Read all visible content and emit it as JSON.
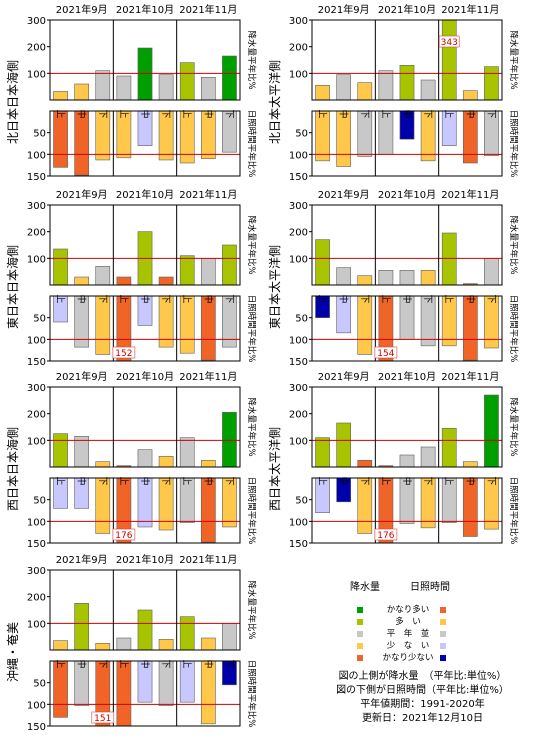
{
  "colors": {
    "very_much": "#009f00",
    "much": "#a8c400",
    "normal": "#c8c8c8",
    "little": "#ffc84b",
    "very_little": "#f06428",
    "sun_much": "#f06428",
    "sun_little": "#c8c8ff",
    "sun_very_little": "#0000aa",
    "normal_line": "#d00000"
  },
  "month_labels": [
    "2021年9月",
    "2021年10月",
    "2021年11月"
  ],
  "dekad_labels": [
    "上",
    "中",
    "下",
    "上",
    "中",
    "下",
    "上",
    "中",
    "下"
  ],
  "precip_ticks": [
    "300",
    "200",
    "100"
  ],
  "sun_ticks": [
    "50",
    "100",
    "150"
  ],
  "precip_side_label": "降水量平年比%",
  "sun_side_label": "日照時間平年比%",
  "chart_data": [
    {
      "type": "bar",
      "region": "北日本日本海側",
      "categories": [
        "9月上",
        "9月中",
        "9月下",
        "10月上",
        "10月中",
        "10月下",
        "11月上",
        "11月中",
        "11月下"
      ],
      "precip": [
        32,
        60,
        110,
        90,
        195,
        95,
        140,
        85,
        165
      ],
      "precip_class": [
        "little",
        "little",
        "normal",
        "normal",
        "very_much",
        "normal",
        "much",
        "normal",
        "very_much"
      ],
      "sun": [
        130,
        148,
        113,
        108,
        80,
        113,
        120,
        110,
        95
      ],
      "sun_class": [
        "sun_much",
        "sun_much",
        "little",
        "little",
        "sun_little",
        "little",
        "little",
        "little",
        "normal"
      ],
      "precip_ylim": [
        0,
        300
      ],
      "sun_ylim": [
        0,
        150
      ],
      "label_values": {}
    },
    {
      "type": "bar",
      "region": "北日本太平洋側",
      "categories": [
        "9月上",
        "9月中",
        "9月下",
        "10月上",
        "10月中",
        "10月下",
        "11月上",
        "11月中",
        "11月下"
      ],
      "precip": [
        55,
        95,
        65,
        110,
        130,
        75,
        343,
        35,
        125
      ],
      "precip_class": [
        "little",
        "normal",
        "little",
        "normal",
        "much",
        "normal",
        "much",
        "little",
        "much"
      ],
      "sun": [
        115,
        128,
        105,
        100,
        65,
        115,
        80,
        120,
        103
      ],
      "sun_class": [
        "little",
        "little",
        "normal",
        "normal",
        "sun_very_little",
        "little",
        "sun_little",
        "sun_much",
        "normal"
      ],
      "precip_ylim": [
        0,
        300
      ],
      "sun_ylim": [
        0,
        150
      ],
      "label_values": {
        "precip": {
          "6": "343"
        }
      }
    },
    {
      "type": "bar",
      "region": "東日本日本海側",
      "categories": [
        "9月上",
        "9月中",
        "9月下",
        "10月上",
        "10月中",
        "10月下",
        "11月上",
        "11月中",
        "11月下"
      ],
      "precip": [
        135,
        30,
        70,
        30,
        200,
        30,
        110,
        100,
        150
      ],
      "precip_class": [
        "much",
        "little",
        "normal",
        "very_little",
        "much",
        "very_little",
        "much",
        "normal",
        "much"
      ],
      "sun": [
        60,
        118,
        135,
        152,
        68,
        118,
        132,
        148,
        118
      ],
      "sun_class": [
        "sun_little",
        "normal",
        "little",
        "sun_much",
        "sun_little",
        "little",
        "little",
        "sun_much",
        "normal"
      ],
      "precip_ylim": [
        0,
        300
      ],
      "sun_ylim": [
        0,
        150
      ],
      "label_values": {
        "sun": {
          "3": "152"
        }
      }
    },
    {
      "type": "bar",
      "region": "東日本太平洋側",
      "categories": [
        "9月上",
        "9月中",
        "9月下",
        "10月上",
        "10月中",
        "10月下",
        "11月上",
        "11月中",
        "11月下"
      ],
      "precip": [
        170,
        65,
        35,
        55,
        55,
        55,
        195,
        5,
        100
      ],
      "precip_class": [
        "much",
        "normal",
        "little",
        "normal",
        "normal",
        "little",
        "much",
        "very_little",
        "normal"
      ],
      "sun": [
        50,
        85,
        135,
        154,
        100,
        115,
        115,
        148,
        120
      ],
      "sun_class": [
        "sun_very_little",
        "sun_little",
        "little",
        "sun_much",
        "normal",
        "normal",
        "little",
        "sun_much",
        "little"
      ],
      "precip_ylim": [
        0,
        300
      ],
      "sun_ylim": [
        0,
        150
      ],
      "label_values": {
        "sun": {
          "3": "154"
        }
      }
    },
    {
      "type": "bar",
      "region": "西日本日本海側",
      "categories": [
        "9月上",
        "9月中",
        "9月下",
        "10月上",
        "10月中",
        "10月下",
        "11月上",
        "11月中",
        "11月下"
      ],
      "precip": [
        125,
        115,
        20,
        5,
        65,
        40,
        110,
        25,
        205
      ],
      "precip_class": [
        "much",
        "normal",
        "little",
        "very_little",
        "normal",
        "little",
        "normal",
        "little",
        "very_much"
      ],
      "sun": [
        70,
        70,
        128,
        176,
        113,
        120,
        103,
        148,
        113
      ],
      "sun_class": [
        "sun_little",
        "sun_little",
        "little",
        "sun_much",
        "sun_little",
        "little",
        "normal",
        "sun_much",
        "little"
      ],
      "precip_ylim": [
        0,
        300
      ],
      "sun_ylim": [
        0,
        150
      ],
      "label_values": {
        "sun": {
          "3": "176"
        }
      }
    },
    {
      "type": "bar",
      "region": "西日本太平洋側",
      "categories": [
        "9月上",
        "9月中",
        "9月下",
        "10月上",
        "10月中",
        "10月下",
        "11月上",
        "11月中",
        "11月下"
      ],
      "precip": [
        110,
        165,
        25,
        5,
        45,
        75,
        145,
        20,
        270
      ],
      "precip_class": [
        "much",
        "much",
        "very_little",
        "very_little",
        "normal",
        "normal",
        "much",
        "little",
        "very_much"
      ],
      "sun": [
        80,
        55,
        128,
        176,
        105,
        115,
        103,
        135,
        118
      ],
      "sun_class": [
        "sun_little",
        "sun_very_little",
        "little",
        "sun_much",
        "normal",
        "little",
        "normal",
        "sun_much",
        "little"
      ],
      "precip_ylim": [
        0,
        300
      ],
      "sun_ylim": [
        0,
        150
      ],
      "label_values": {
        "sun": {
          "3": "176"
        }
      }
    },
    {
      "type": "bar",
      "region": "沖縄・奄美",
      "categories": [
        "9月上",
        "9月中",
        "9月下",
        "10月上",
        "10月中",
        "10月下",
        "11月上",
        "11月中",
        "11月下"
      ],
      "precip": [
        35,
        175,
        25,
        45,
        150,
        40,
        125,
        45,
        100
      ],
      "precip_class": [
        "little",
        "much",
        "little",
        "normal",
        "much",
        "little",
        "much",
        "little",
        "normal"
      ],
      "sun": [
        130,
        103,
        151,
        150,
        95,
        103,
        95,
        145,
        55
      ],
      "sun_class": [
        "sun_much",
        "normal",
        "sun_much",
        "sun_much",
        "sun_little",
        "normal",
        "sun_little",
        "little",
        "sun_very_little"
      ],
      "precip_ylim": [
        0,
        300
      ],
      "sun_ylim": [
        0,
        150
      ],
      "label_values": {
        "sun": {
          "2": "151"
        }
      }
    }
  ],
  "legend": {
    "precip_header": "降水量",
    "sun_header": "日照時間",
    "rows": [
      {
        "label": "かなり多い",
        "precip_color": "#009f00",
        "sun_color": "#f06428"
      },
      {
        "label": "多　い",
        "precip_color": "#a8c400",
        "sun_color": "#ffc84b"
      },
      {
        "label": "平　年　並",
        "precip_color": "#c8c8c8",
        "sun_color": "#c8c8c8"
      },
      {
        "label": "少　な　い",
        "precip_color": "#ffc84b",
        "sun_color": "#c8c8ff"
      },
      {
        "label": "かなり少ない",
        "precip_color": "#f06428",
        "sun_color": "#0000aa"
      }
    ]
  },
  "notes": {
    "line1": "図の上側が降水量　（平年比:単位%）",
    "line2": "図の下側が日照時間（平年比:単位%）",
    "line3": "平年値期間：1991-2020年",
    "line4": "更新日：2021年12月10日"
  }
}
